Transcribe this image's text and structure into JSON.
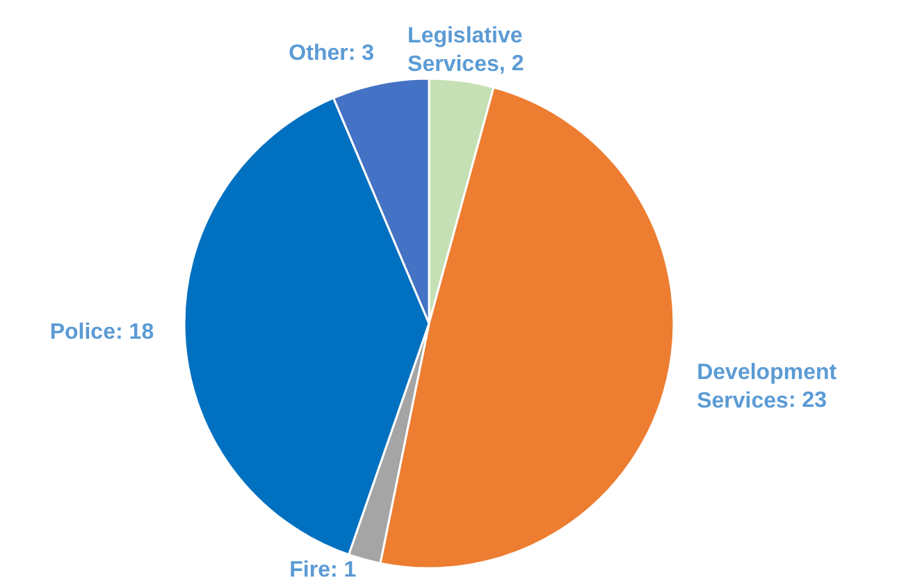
{
  "chart_data": {
    "type": "pie",
    "categories": [
      "Legislative Services",
      "Development Services",
      "Fire",
      "Police",
      "Other"
    ],
    "values": [
      2,
      23,
      1,
      18,
      3
    ],
    "colors": [
      "#c5e0b4",
      "#ed7d31",
      "#a5a5a5",
      "#0070c0",
      "#4472c4"
    ],
    "value_labels": [
      ", 2",
      ": 23",
      ": 1",
      ": 18",
      ": 3"
    ],
    "legend": false
  }
}
